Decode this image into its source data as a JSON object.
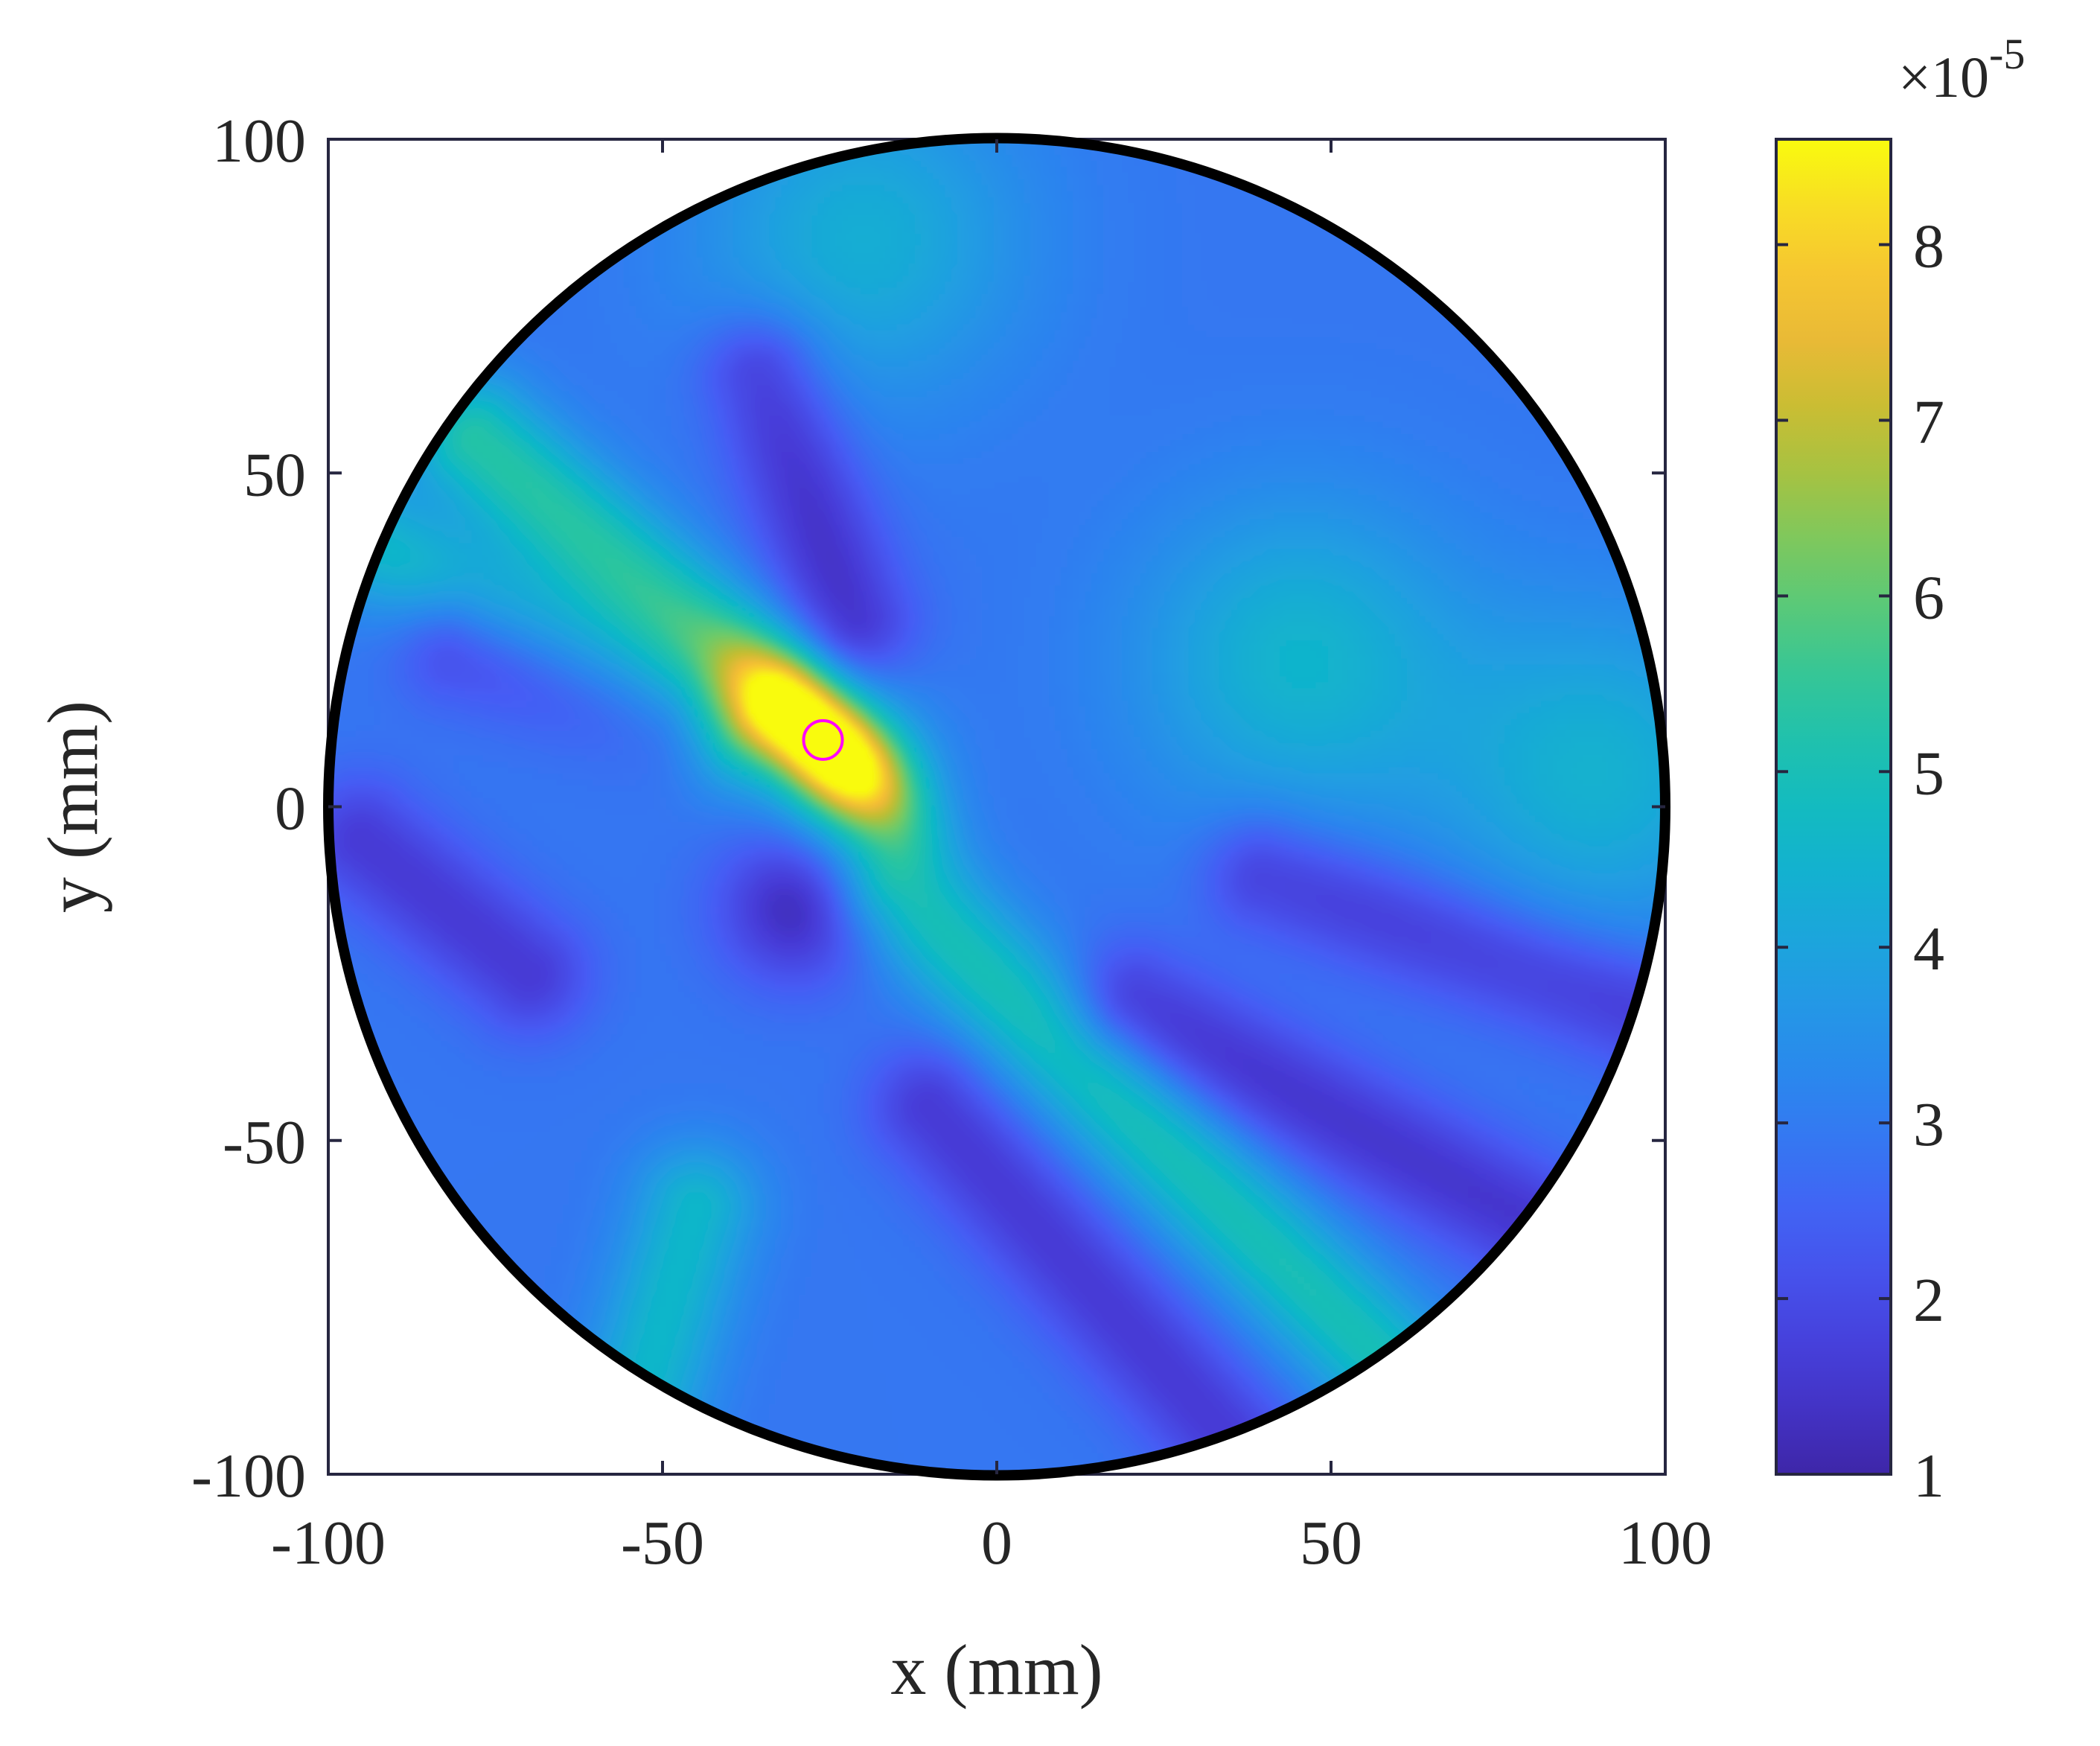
{
  "chart_data": {
    "type": "heatmap",
    "title": "",
    "xlabel": "x (mm)",
    "ylabel": "y (mm)",
    "xlim": [
      -100,
      100
    ],
    "ylim": [
      -100,
      100
    ],
    "xticks": [
      "-100",
      "-50",
      "0",
      "50",
      "100"
    ],
    "yticks": [
      "100",
      "50",
      "0",
      "-50",
      "-100"
    ],
    "xtick_values": [
      -100,
      -50,
      0,
      50,
      100
    ],
    "ytick_values": [
      100,
      50,
      0,
      -50,
      -100
    ],
    "domain": {
      "shape": "circle",
      "center": [
        0,
        0
      ],
      "radius": 100
    },
    "colorbar": {
      "colormap": "parula",
      "range": [
        1,
        8.6
      ],
      "ticks": [
        "1",
        "2",
        "3",
        "4",
        "5",
        "6",
        "7",
        "8"
      ],
      "tick_values": [
        1,
        2,
        3,
        4,
        5,
        6,
        7,
        8
      ],
      "multiplier": "×10",
      "exponent": "-5"
    },
    "peak": {
      "x": -26,
      "y": 10,
      "value": 8.6
    },
    "marker": {
      "x": -26,
      "y": 10,
      "shape": "circle",
      "color": "#ff00ff"
    },
    "field_features": [
      {
        "kind": "hotspot",
        "x": -22,
        "y": 5,
        "value": 8.2
      },
      {
        "kind": "ridge",
        "from": [
          -78,
          55
        ],
        "to": [
          -35,
          18
        ],
        "value": 5.3
      },
      {
        "kind": "ridge",
        "from": [
          -15,
          -12
        ],
        "to": [
          60,
          -85
        ],
        "value": 5.0
      },
      {
        "kind": "ridge",
        "from": [
          -95,
          40
        ],
        "to": [
          -40,
          12
        ],
        "value": 4.6
      },
      {
        "kind": "ridge",
        "from": [
          -45,
          -60
        ],
        "to": [
          -55,
          -95
        ],
        "value": 4.6
      },
      {
        "kind": "lobe",
        "x": 45,
        "y": 22,
        "value": 4.5
      },
      {
        "kind": "lobe",
        "x": 90,
        "y": 5,
        "value": 4.4
      },
      {
        "kind": "lobe",
        "x": -20,
        "y": 85,
        "value": 4.3
      },
      {
        "kind": "trough",
        "x": -30,
        "y": -15,
        "value": 1.2
      },
      {
        "kind": "trough",
        "from": [
          -35,
          65
        ],
        "to": [
          -22,
          28
        ],
        "value": 1.4
      },
      {
        "kind": "trough",
        "from": [
          -80,
          25
        ],
        "to": [
          -50,
          15
        ],
        "value": 1.5
      },
      {
        "kind": "trough",
        "from": [
          -95,
          -5
        ],
        "to": [
          -70,
          -25
        ],
        "value": 1.6
      },
      {
        "kind": "trough",
        "from": [
          -10,
          -45
        ],
        "to": [
          35,
          -95
        ],
        "value": 1.6
      },
      {
        "kind": "trough",
        "from": [
          20,
          -30
        ],
        "to": [
          85,
          -65
        ],
        "value": 1.5
      },
      {
        "kind": "trough",
        "from": [
          40,
          -10
        ],
        "to": [
          95,
          -30
        ],
        "value": 1.6
      }
    ]
  }
}
